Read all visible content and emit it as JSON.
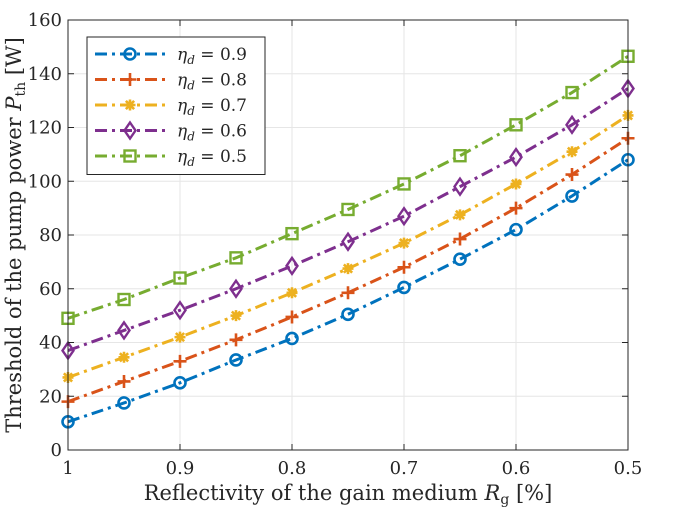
{
  "chart_data": {
    "type": "line",
    "title": "",
    "xlabel": "Reflectivity of the gain medium ",
    "xlabel_symbol": "R",
    "xlabel_sub": "g",
    "xlabel_unit": " [%]",
    "ylabel": "Threshold of the pump power ",
    "ylabel_symbol": "P",
    "ylabel_sub": "th",
    "ylabel_unit": " [W]",
    "x": [
      1,
      0.95,
      0.9,
      0.85,
      0.8,
      0.75,
      0.7,
      0.65,
      0.6,
      0.55,
      0.5
    ],
    "xlim": [
      1,
      0.5
    ],
    "ylim": [
      0,
      160
    ],
    "xticks": [
      {
        "value": 1,
        "label": "1"
      },
      {
        "value": 0.9,
        "label": "0.9"
      },
      {
        "value": 0.8,
        "label": "0.8"
      },
      {
        "value": 0.7,
        "label": "0.7"
      },
      {
        "value": 0.6,
        "label": "0.6"
      },
      {
        "value": 0.5,
        "label": "0.5"
      }
    ],
    "yticks": [
      {
        "value": 0,
        "label": "0"
      },
      {
        "value": 20,
        "label": "20"
      },
      {
        "value": 40,
        "label": "40"
      },
      {
        "value": 60,
        "label": "60"
      },
      {
        "value": 80,
        "label": "80"
      },
      {
        "value": 100,
        "label": "100"
      },
      {
        "value": 120,
        "label": "120"
      },
      {
        "value": 140,
        "label": "140"
      },
      {
        "value": 160,
        "label": "160"
      }
    ],
    "grid": true,
    "legend_position": "top-left",
    "series": [
      {
        "name": "0.9",
        "legend_symbol": "η",
        "legend_sub": "d",
        "legend_rel": " = ",
        "color": "#0072BD",
        "marker": "circle",
        "values": [
          10.5,
          17.5,
          25,
          33.5,
          41.5,
          50.5,
          60.5,
          71,
          82,
          94.5,
          108
        ]
      },
      {
        "name": "0.8",
        "legend_symbol": "η",
        "legend_sub": "d",
        "legend_rel": " = ",
        "color": "#D95319",
        "marker": "plus",
        "values": [
          18,
          25.5,
          33,
          41,
          49.5,
          58.5,
          68,
          78.5,
          90,
          102.5,
          116
        ]
      },
      {
        "name": "0.7",
        "legend_symbol": "η",
        "legend_sub": "d",
        "legend_rel": " = ",
        "color": "#EDB120",
        "marker": "asterisk",
        "values": [
          27,
          34.5,
          42,
          50,
          58.5,
          67.5,
          77,
          87.5,
          99,
          111,
          124.5
        ]
      },
      {
        "name": "0.6",
        "legend_symbol": "η",
        "legend_sub": "d",
        "legend_rel": " = ",
        "color": "#7E2F8E",
        "marker": "diamond",
        "values": [
          37,
          44.5,
          52,
          60,
          68.5,
          77.5,
          87,
          98,
          109,
          121,
          134.5
        ]
      },
      {
        "name": "0.5",
        "legend_symbol": "η",
        "legend_sub": "d",
        "legend_rel": " = ",
        "color": "#77AC30",
        "marker": "square",
        "values": [
          49,
          56,
          64,
          71.5,
          80.5,
          89.5,
          99,
          109.5,
          121,
          133,
          146.5
        ]
      }
    ]
  }
}
